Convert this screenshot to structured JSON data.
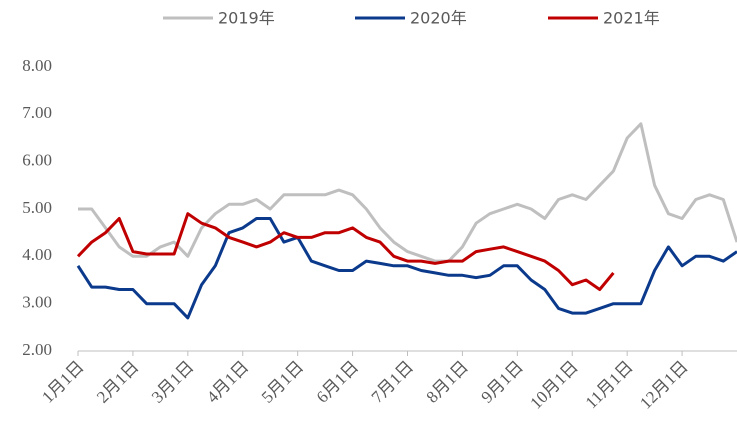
{
  "chart_data": {
    "type": "line",
    "categories": [
      "1月1日",
      null,
      null,
      null,
      "2月1日",
      null,
      null,
      null,
      "3月1日",
      null,
      null,
      null,
      "4月1日",
      null,
      null,
      null,
      "5月1日",
      null,
      null,
      null,
      "6月1日",
      null,
      null,
      null,
      "7月1日",
      null,
      null,
      null,
      "8月1日",
      null,
      null,
      null,
      "9月1日",
      null,
      null,
      null,
      "10月1日",
      null,
      null,
      null,
      "11月1日",
      null,
      null,
      null,
      "12月1日",
      null,
      null,
      null,
      null
    ],
    "series": [
      {
        "name": "2019年",
        "color": "#bfbfbf",
        "values": [
          5.0,
          5.0,
          4.6,
          4.2,
          4.0,
          4.0,
          4.2,
          4.3,
          4.0,
          4.6,
          4.9,
          5.1,
          5.1,
          5.2,
          5.0,
          5.3,
          5.3,
          5.3,
          5.3,
          5.4,
          5.3,
          5.0,
          4.6,
          4.3,
          4.1,
          4.0,
          3.9,
          3.9,
          4.2,
          4.7,
          4.9,
          5.0,
          5.1,
          5.0,
          4.8,
          5.2,
          5.3,
          5.2,
          5.5,
          5.8,
          6.5,
          6.8,
          5.5,
          4.9,
          4.8,
          5.2,
          5.3,
          5.2,
          4.3
        ]
      },
      {
        "name": "2020年",
        "color": "#0b3a8c",
        "values": [
          3.8,
          3.35,
          3.35,
          3.3,
          3.3,
          3.0,
          3.0,
          3.0,
          2.7,
          3.4,
          3.8,
          4.5,
          4.6,
          4.8,
          4.8,
          4.3,
          4.4,
          3.9,
          3.8,
          3.7,
          3.7,
          3.9,
          3.85,
          3.8,
          3.8,
          3.7,
          3.65,
          3.6,
          3.6,
          3.55,
          3.6,
          3.8,
          3.8,
          3.5,
          3.3,
          2.9,
          2.8,
          2.8,
          2.9,
          3.0,
          3.0,
          3.0,
          3.7,
          4.2,
          3.8,
          4.0,
          4.0,
          3.9,
          4.1
        ]
      },
      {
        "name": "2021年",
        "color": "#c00000",
        "values": [
          4.0,
          4.3,
          4.5,
          4.8,
          4.1,
          4.05,
          4.05,
          4.05,
          4.9,
          4.7,
          4.6,
          4.4,
          4.3,
          4.2,
          4.3,
          4.5,
          4.4,
          4.4,
          4.5,
          4.5,
          4.6,
          4.4,
          4.3,
          4.0,
          3.9,
          3.9,
          3.85,
          3.9,
          3.9,
          4.1,
          4.15,
          4.2,
          4.1,
          4.0,
          3.9,
          3.7,
          3.4,
          3.5,
          3.3,
          3.65,
          null,
          null,
          null,
          null,
          null,
          null,
          null,
          null,
          null
        ]
      }
    ],
    "ylim": [
      2,
      8
    ],
    "yticks": [
      {
        "value": 2,
        "label": "2.00"
      },
      {
        "value": 3,
        "label": "3.00"
      },
      {
        "value": 4,
        "label": "4.00"
      },
      {
        "value": 5,
        "label": "5.00"
      },
      {
        "value": 6,
        "label": "6.00"
      },
      {
        "value": 7,
        "label": "7.00"
      },
      {
        "value": 8,
        "label": "8.00"
      }
    ],
    "grid": false,
    "legend": "top"
  }
}
